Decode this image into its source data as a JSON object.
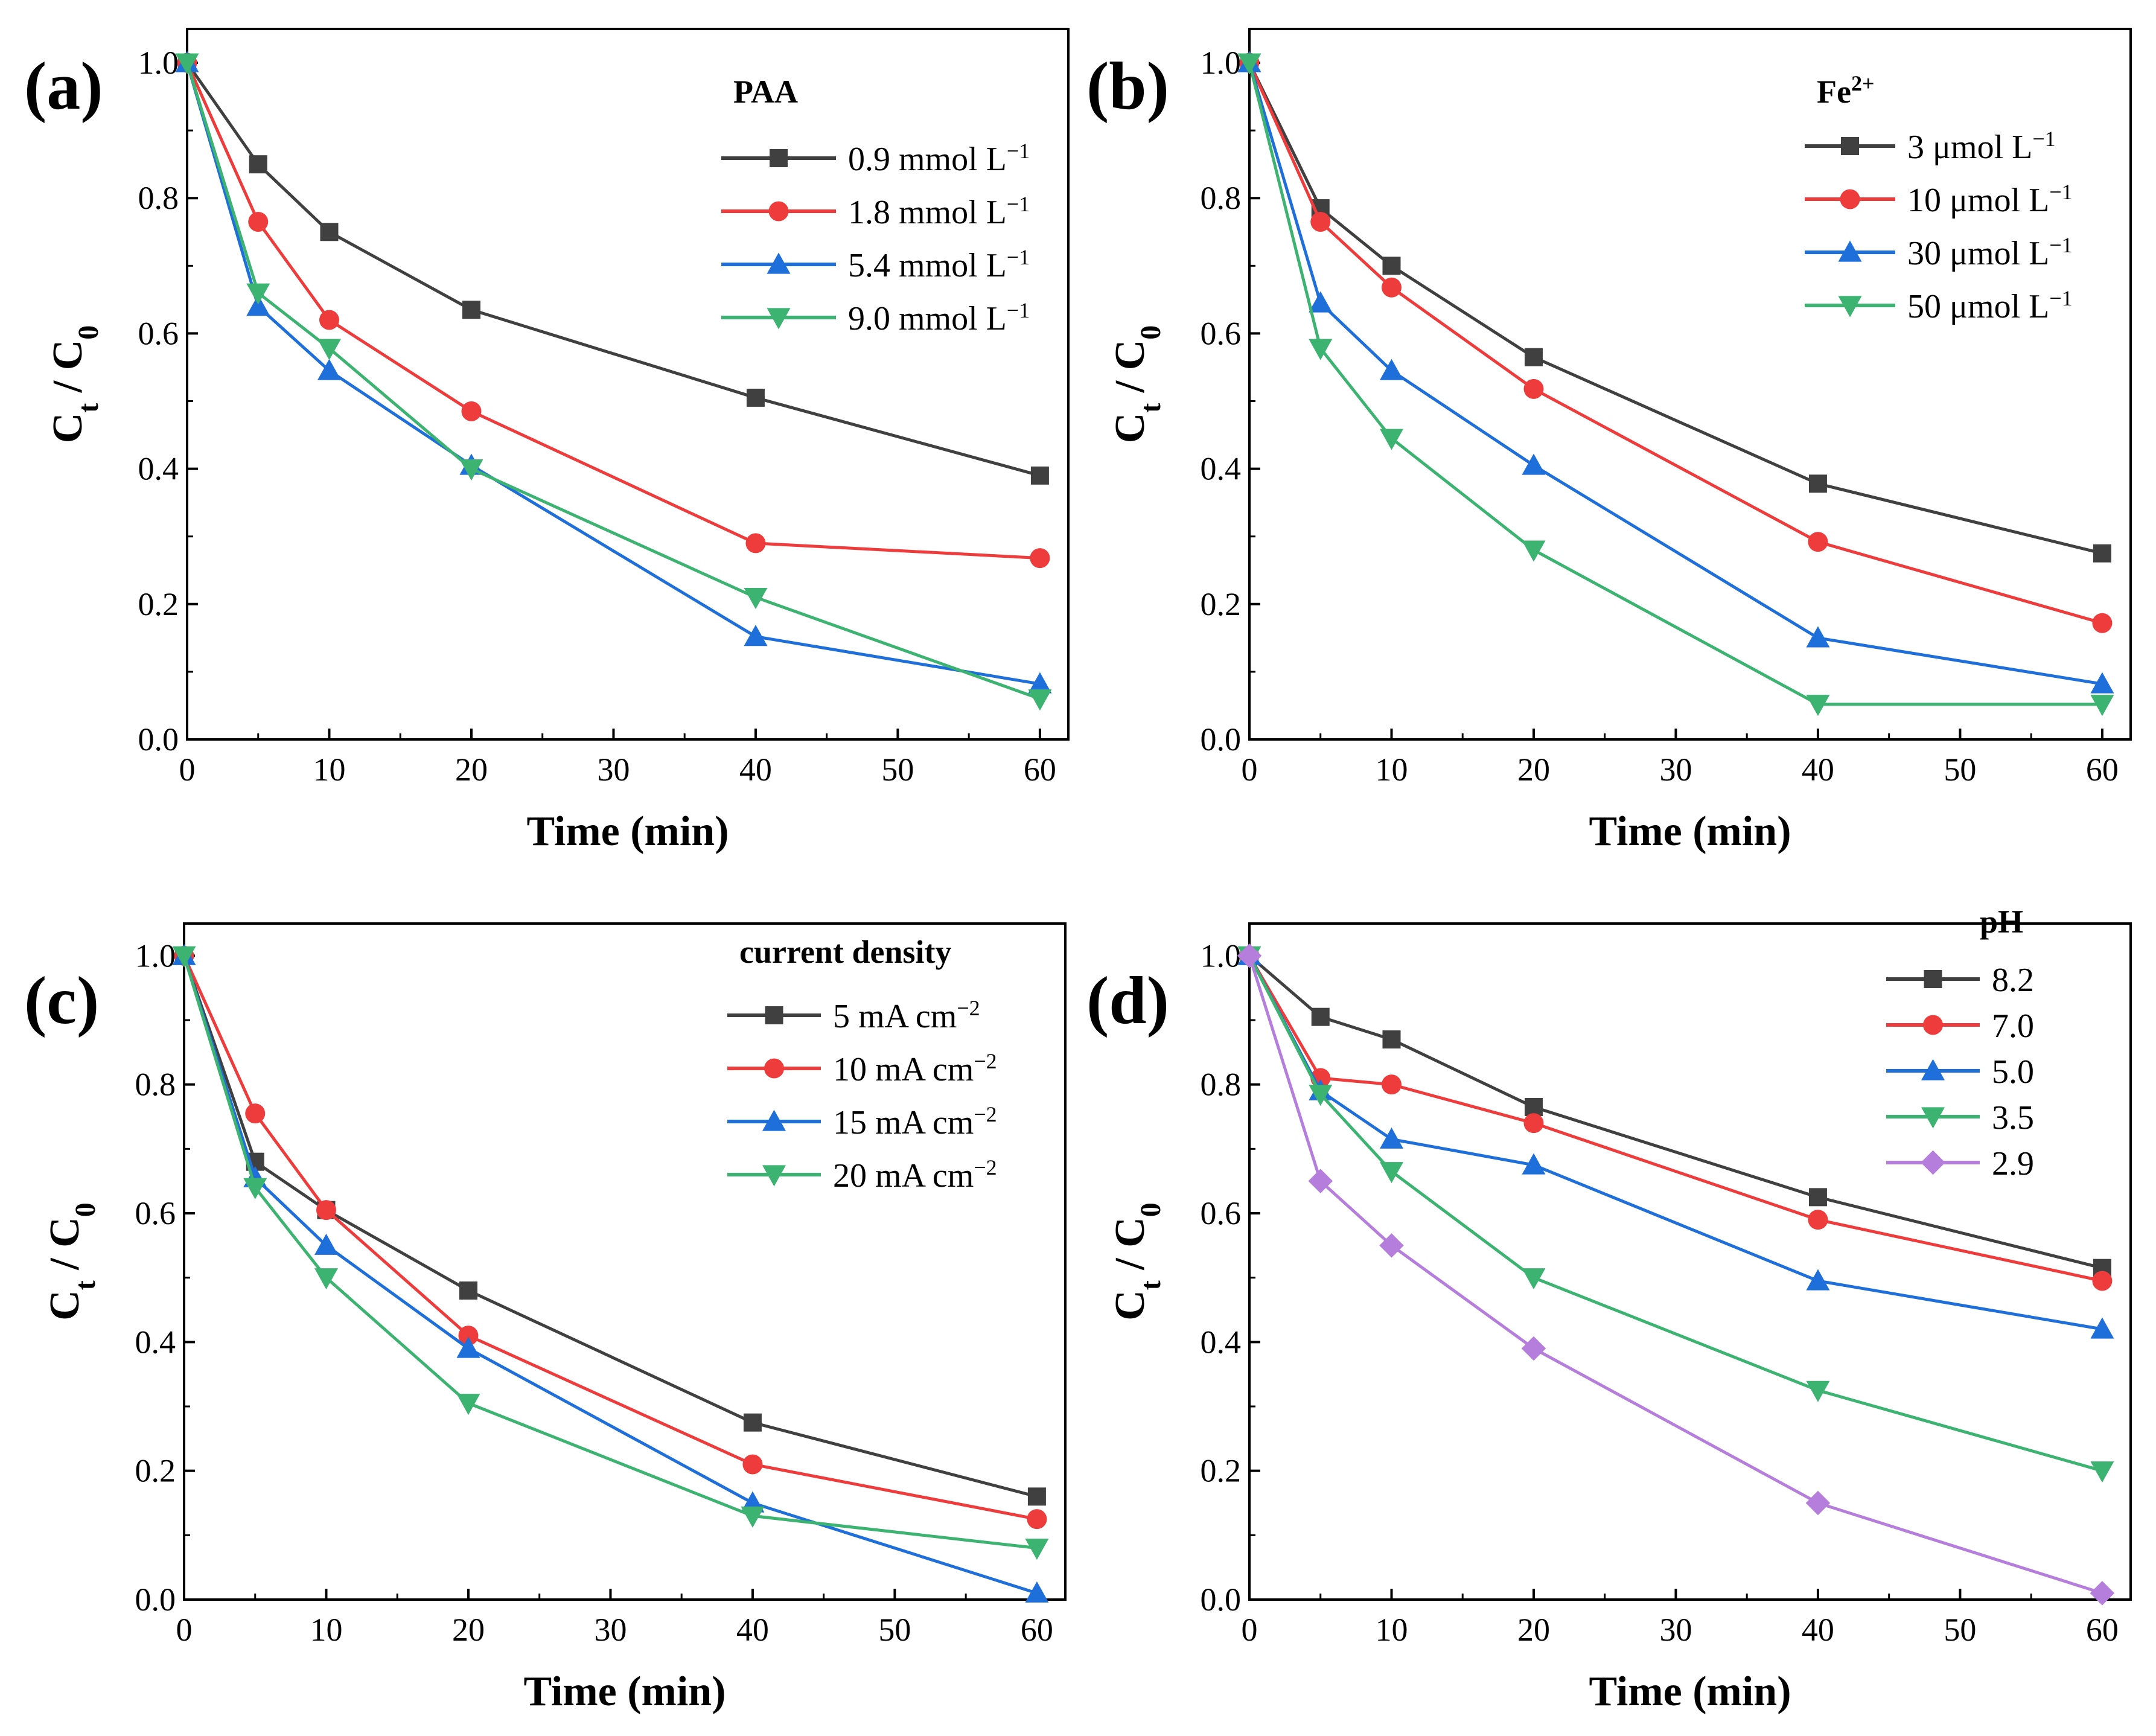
{
  "chart_data": [
    {
      "type": "line",
      "panel_label": "(a)",
      "xlabel": "Time (min)",
      "ylabel": "Ct / C0",
      "xlim": [
        0,
        62
      ],
      "ylim": [
        0,
        1.05
      ],
      "xticks": [
        "0",
        "10",
        "20",
        "30",
        "40",
        "50",
        "60"
      ],
      "yticks": [
        "0.0",
        "0.2",
        "0.4",
        "0.6",
        "0.8",
        "1.0"
      ],
      "legend_title": "PAA",
      "legend_position": "top-right",
      "x": [
        0,
        5,
        10,
        20,
        40,
        60
      ],
      "series": [
        {
          "name": "0.9 mmol L",
          "sup": "−1",
          "color": "#404040",
          "marker": "square",
          "values": [
            1.0,
            0.85,
            0.75,
            0.635,
            0.505,
            0.39
          ]
        },
        {
          "name": "1.8 mmol L",
          "sup": "−1",
          "color": "#ee3b3b",
          "marker": "circle",
          "values": [
            1.0,
            0.765,
            0.62,
            0.485,
            0.29,
            0.268
          ]
        },
        {
          "name": "5.4 mmol L",
          "sup": "−1",
          "color": "#1e6fd9",
          "marker": "triangle-up",
          "values": [
            1.0,
            0.64,
            0.545,
            0.405,
            0.152,
            0.082
          ]
        },
        {
          "name": "9.0 mmol L",
          "sup": "−1",
          "color": "#3cb371",
          "marker": "triangle-down",
          "values": [
            1.0,
            0.66,
            0.578,
            0.4,
            0.21,
            0.06
          ]
        }
      ]
    },
    {
      "type": "line",
      "panel_label": "(b)",
      "xlabel": "Time (min)",
      "ylabel": "Ct / C0",
      "xlim": [
        0,
        62
      ],
      "ylim": [
        0,
        1.05
      ],
      "xticks": [
        "0",
        "10",
        "20",
        "30",
        "40",
        "50",
        "60"
      ],
      "yticks": [
        "0.0",
        "0.2",
        "0.4",
        "0.6",
        "0.8",
        "1.0"
      ],
      "legend_title": "Fe",
      "legend_title_sup": "2+",
      "legend_position": "top-right",
      "x": [
        0,
        5,
        10,
        20,
        40,
        60
      ],
      "series": [
        {
          "name": "3   μmol L",
          "sup": "−1",
          "color": "#404040",
          "marker": "square",
          "values": [
            1.0,
            0.785,
            0.7,
            0.565,
            0.378,
            0.275
          ]
        },
        {
          "name": "10 μmol L",
          "sup": "−1",
          "color": "#ee3b3b",
          "marker": "circle",
          "values": [
            1.0,
            0.765,
            0.668,
            0.518,
            0.292,
            0.172
          ]
        },
        {
          "name": "30 μmol L",
          "sup": "−1",
          "color": "#1e6fd9",
          "marker": "triangle-up",
          "values": [
            1.0,
            0.645,
            0.545,
            0.405,
            0.15,
            0.082
          ]
        },
        {
          "name": "50 μmol L",
          "sup": "−1",
          "color": "#3cb371",
          "marker": "triangle-down",
          "values": [
            1.0,
            0.578,
            0.445,
            0.28,
            0.052,
            0.052
          ]
        }
      ]
    },
    {
      "type": "line",
      "panel_label": "(c)",
      "xlabel": "Time (min)",
      "ylabel": "Ct / C0",
      "xlim": [
        0,
        62
      ],
      "ylim": [
        0,
        1.05
      ],
      "xticks": [
        "0",
        "10",
        "20",
        "30",
        "40",
        "50",
        "60"
      ],
      "yticks": [
        "0.0",
        "0.2",
        "0.4",
        "0.6",
        "0.8",
        "1.0"
      ],
      "legend_title": "current density",
      "legend_position": "top-right",
      "x": [
        0,
        5,
        10,
        20,
        40,
        60
      ],
      "series": [
        {
          "name": "5   mA cm",
          "sup": "−2",
          "color": "#404040",
          "marker": "square",
          "values": [
            1.0,
            0.68,
            0.605,
            0.48,
            0.275,
            0.16
          ]
        },
        {
          "name": "10  mA cm",
          "sup": "−2",
          "color": "#ee3b3b",
          "marker": "circle",
          "values": [
            1.0,
            0.755,
            0.605,
            0.41,
            0.21,
            0.125
          ]
        },
        {
          "name": "15  mA cm",
          "sup": "−2",
          "color": "#1e6fd9",
          "marker": "triangle-up",
          "values": [
            1.0,
            0.655,
            0.55,
            0.39,
            0.15,
            0.01
          ]
        },
        {
          "name": "20  mA cm",
          "sup": "−2",
          "color": "#3cb371",
          "marker": "triangle-down",
          "values": [
            1.0,
            0.64,
            0.5,
            0.305,
            0.13,
            0.08
          ]
        }
      ]
    },
    {
      "type": "line",
      "panel_label": "(d)",
      "xlabel": "Time (min)",
      "ylabel": "Ct / C0",
      "xlim": [
        0,
        62
      ],
      "ylim": [
        0,
        1.05
      ],
      "xticks": [
        "0",
        "10",
        "20",
        "30",
        "40",
        "50",
        "60"
      ],
      "yticks": [
        "0.0",
        "0.2",
        "0.4",
        "0.6",
        "0.8",
        "1.0"
      ],
      "legend_title": "pH",
      "legend_position": "top-right",
      "x": [
        0,
        5,
        10,
        20,
        40,
        60
      ],
      "series": [
        {
          "name": "8.2",
          "color": "#404040",
          "marker": "square",
          "values": [
            1.0,
            0.905,
            0.87,
            0.765,
            0.625,
            0.515
          ]
        },
        {
          "name": "7.0",
          "color": "#ee3b3b",
          "marker": "circle",
          "values": [
            1.0,
            0.81,
            0.8,
            0.74,
            0.59,
            0.495
          ]
        },
        {
          "name": "5.0",
          "color": "#1e6fd9",
          "marker": "triangle-up",
          "values": [
            1.0,
            0.79,
            0.715,
            0.675,
            0.495,
            0.42
          ]
        },
        {
          "name": "3.5",
          "color": "#3cb371",
          "marker": "triangle-down",
          "values": [
            1.0,
            0.785,
            0.665,
            0.5,
            0.325,
            0.2
          ]
        },
        {
          "name": "2.9",
          "color": "#b57edc",
          "marker": "diamond",
          "values": [
            1.0,
            0.65,
            0.55,
            0.39,
            0.15,
            0.01
          ]
        }
      ]
    }
  ]
}
